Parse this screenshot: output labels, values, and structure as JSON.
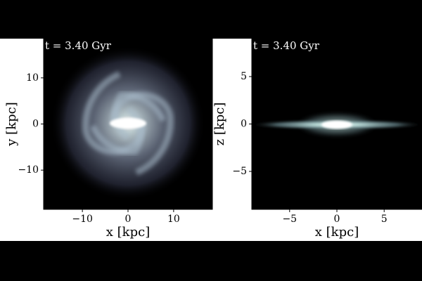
{
  "chart_data": [
    {
      "type": "image",
      "annotation": "t = 3.40 Gyr",
      "xlabel": "x [kpc]",
      "ylabel": "y [kpc]",
      "xlim": [
        -18.5,
        18.5
      ],
      "ylim": [
        -18.5,
        18.5
      ],
      "xticks": [
        {
          "value": -10,
          "label": "−10"
        },
        0,
        10
      ],
      "yticks": [
        {
          "value": -10,
          "label": "−10"
        },
        0,
        10
      ],
      "grid": false
    },
    {
      "type": "image",
      "annotation": "t = 3.40 Gyr",
      "xlabel": "x [kpc]",
      "ylabel": "z [kpc]",
      "xlim": [
        -9,
        9
      ],
      "ylim": [
        -9,
        9
      ],
      "xticks": [
        {
          "value": -5,
          "label": "−5"
        },
        0,
        5
      ],
      "yticks": [
        {
          "value": -5,
          "label": "−5"
        },
        0,
        5
      ],
      "grid": false
    }
  ]
}
